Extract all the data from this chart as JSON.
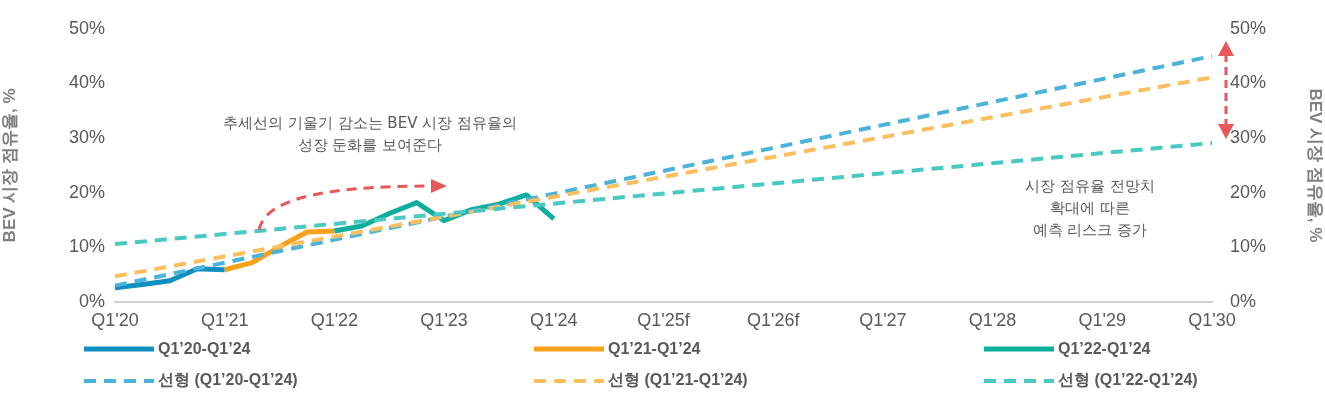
{
  "chart_data": {
    "type": "line",
    "categories": [
      "Q1'20",
      null,
      null,
      null,
      "Q1'21",
      null,
      null,
      null,
      "Q1'22",
      null,
      null,
      null,
      "Q1'23",
      null,
      null,
      null,
      "Q1'24",
      null,
      null,
      null,
      "Q1'25f",
      null,
      null,
      null,
      "Q1'26f",
      null,
      null,
      null,
      "Q1'27",
      null,
      null,
      null,
      "Q1'28",
      null,
      null,
      null,
      "Q1'29",
      null,
      null,
      null,
      "Q1'30"
    ],
    "ylabel": "BEV 시장 점유율, %",
    "y2label": "BEV 시장 점유율, %",
    "ylim": [
      0,
      50
    ],
    "yticks": [
      {
        "value": 0,
        "label": "0%"
      },
      {
        "value": 10,
        "label": "10%"
      },
      {
        "value": 20,
        "label": "20%"
      },
      {
        "value": 30,
        "label": "30%"
      },
      {
        "value": 40,
        "label": "40%"
      },
      {
        "value": 50,
        "label": "50%"
      }
    ],
    "y2lim": [
      0,
      50
    ],
    "y2ticks": [
      {
        "value": 0,
        "label": "0%"
      },
      {
        "value": 10,
        "label": "10%"
      },
      {
        "value": 20,
        "label": "20%"
      },
      {
        "value": 30,
        "label": "30%"
      },
      {
        "value": 40,
        "label": "40%"
      },
      {
        "value": 50,
        "label": "50%"
      }
    ],
    "grid": false,
    "legend": "bottom",
    "marker": "none",
    "annotations": [
      "추세선의 기울기 감소는 BEV 시장 점유율의\n성장 둔화를 보여준다",
      "시장 점유율 전망치\n확대에 따른\n예측 리스크 증가"
    ],
    "series": [
      {
        "name": "Q1’20-Q1’24",
        "color": "#0e8fc0",
        "line_style": "solid",
        "values": [
          2.6,
          3.2,
          3.9,
          6.1,
          5.9,
          null,
          null,
          null,
          null,
          null,
          null,
          null,
          null,
          null,
          null,
          null,
          null,
          null,
          null,
          null,
          null,
          null,
          null,
          null,
          null,
          null,
          null,
          null,
          null,
          null,
          null,
          null,
          null,
          null,
          null,
          null,
          null,
          null,
          null,
          null,
          null
        ]
      },
      {
        "name": "Q1’21-Q1’24",
        "color": "#f7a21b",
        "line_style": "solid",
        "values": [
          null,
          null,
          null,
          null,
          5.9,
          7.2,
          10.1,
          12.8,
          13.0,
          null,
          null,
          null,
          null,
          null,
          null,
          null,
          null,
          null,
          null,
          null,
          null,
          null,
          null,
          null,
          null,
          null,
          null,
          null,
          null,
          null,
          null,
          null,
          null,
          null,
          null,
          null,
          null,
          null,
          null,
          null,
          null
        ]
      },
      {
        "name": "Q1’22-Q1’24",
        "color": "#0fae9c",
        "line_style": "solid",
        "values": [
          null,
          null,
          null,
          null,
          null,
          null,
          null,
          null,
          13.0,
          13.9,
          16.2,
          18.2,
          14.9,
          16.9,
          17.9,
          19.6,
          15.2,
          null,
          null,
          null,
          null,
          null,
          null,
          null,
          null,
          null,
          null,
          null,
          null,
          null,
          null,
          null,
          null,
          null,
          null,
          null,
          null,
          null,
          null,
          null,
          null
        ]
      },
      {
        "name": "선형 (Q1’20-Q1’24)",
        "color": "#4bb3d9",
        "line_style": "dashed",
        "x": [
          "Q1'20",
          "Q1'30"
        ],
        "values": [
          3.0,
          45.0
        ]
      },
      {
        "name": "선형 (Q1’21-Q1’24)",
        "color": "#fbbf5f",
        "line_style": "dashed",
        "x": [
          "Q1'20",
          "Q1'30"
        ],
        "values": [
          4.7,
          41.1
        ]
      },
      {
        "name": "선형 (Q1’22-Q1’24)",
        "color": "#4ac9c2",
        "line_style": "dashed",
        "x": [
          "Q1'20",
          "Q1'30"
        ],
        "values": [
          10.6,
          29.1
        ]
      }
    ]
  }
}
